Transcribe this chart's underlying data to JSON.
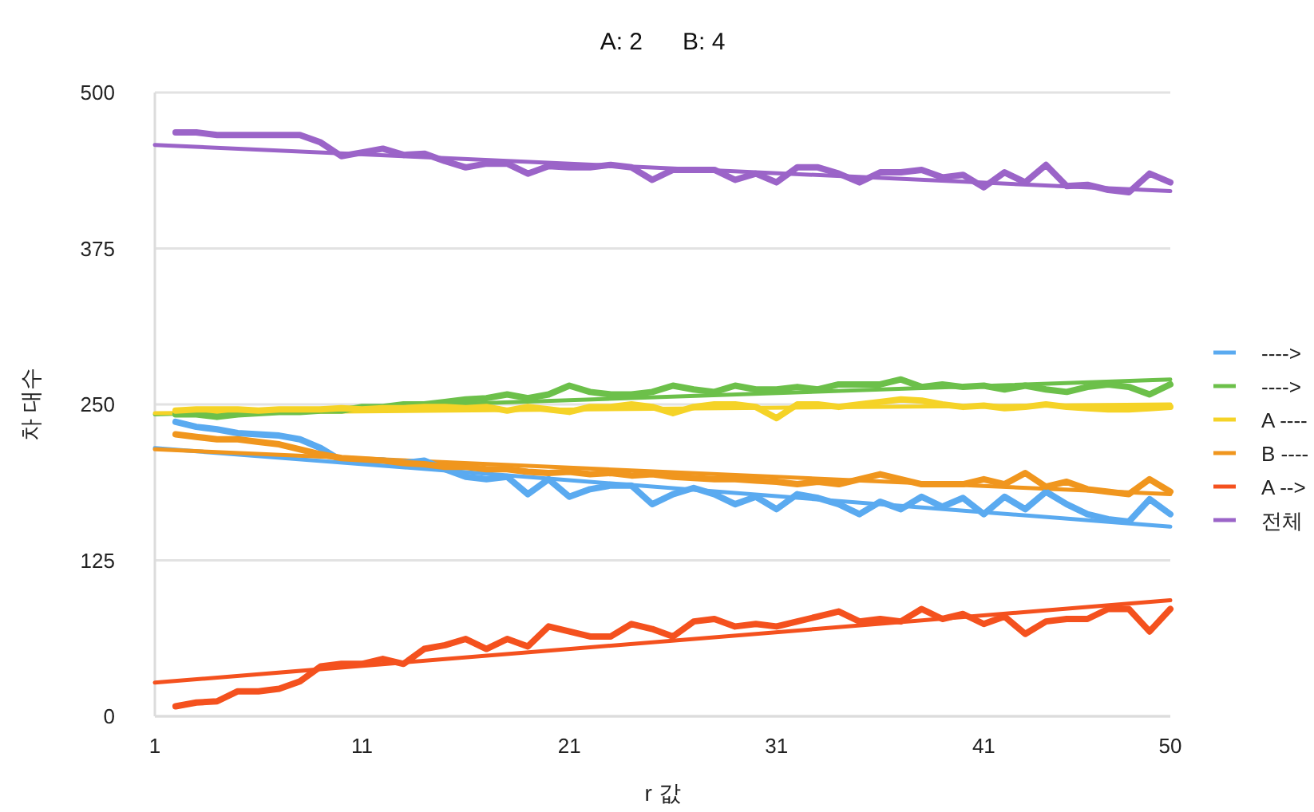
{
  "chart_data": {
    "type": "line",
    "title": "A: 2      B: 4",
    "xlabel": "r 값",
    "ylabel": "차 대수",
    "xlim": [
      1,
      50
    ],
    "xticks": [
      1,
      11,
      21,
      31,
      41,
      50
    ],
    "ylim": [
      0,
      500
    ],
    "yticks": [
      0,
      125,
      250,
      375,
      500
    ],
    "grid": "y",
    "legend": "right",
    "series": [
      {
        "name": "---->",
        "color": "#5aaaf0",
        "x": [
          2,
          3,
          4,
          5,
          6,
          7,
          8,
          9,
          10,
          11,
          12,
          13,
          14,
          15,
          16,
          17,
          18,
          19,
          20,
          21,
          22,
          23,
          24,
          25,
          26,
          27,
          28,
          29,
          30,
          31,
          32,
          33,
          34,
          35,
          36,
          37,
          38,
          39,
          40,
          41,
          42,
          43,
          44,
          45,
          46,
          47,
          48,
          49,
          50
        ],
        "values": [
          236,
          232,
          230,
          227,
          226,
          225,
          222,
          215,
          205,
          205,
          205,
          203,
          205,
          198,
          192,
          190,
          192,
          178,
          190,
          176,
          182,
          185,
          185,
          170,
          178,
          183,
          178,
          170,
          176,
          166,
          178,
          175,
          170,
          162,
          172,
          166,
          176,
          168,
          175,
          162,
          176,
          166,
          180,
          170,
          162,
          158,
          156,
          174,
          162
        ]
      },
      {
        "name": "---->",
        "color": "#6cc04a",
        "x": [
          2,
          3,
          4,
          5,
          6,
          7,
          8,
          9,
          10,
          11,
          12,
          13,
          14,
          15,
          16,
          17,
          18,
          19,
          20,
          21,
          22,
          23,
          24,
          25,
          26,
          27,
          28,
          29,
          30,
          31,
          32,
          33,
          34,
          35,
          36,
          37,
          38,
          39,
          40,
          41,
          42,
          43,
          44,
          45,
          46,
          47,
          48,
          49,
          50
        ],
        "values": [
          242,
          242,
          240,
          242,
          243,
          244,
          244,
          245,
          245,
          248,
          248,
          250,
          250,
          252,
          254,
          255,
          258,
          255,
          258,
          265,
          260,
          258,
          258,
          260,
          265,
          262,
          260,
          265,
          262,
          262,
          264,
          262,
          266,
          266,
          266,
          270,
          264,
          266,
          264,
          265,
          262,
          265,
          262,
          260,
          264,
          266,
          264,
          258,
          266
        ]
      },
      {
        "name": "A ----",
        "color": "#f5d327",
        "x": [
          2,
          3,
          4,
          5,
          6,
          7,
          8,
          9,
          10,
          11,
          12,
          13,
          14,
          15,
          16,
          17,
          18,
          19,
          20,
          21,
          22,
          23,
          24,
          25,
          26,
          27,
          28,
          29,
          30,
          31,
          32,
          33,
          34,
          35,
          36,
          37,
          38,
          39,
          40,
          41,
          42,
          43,
          44,
          45,
          46,
          47,
          48,
          49,
          50
        ],
        "values": [
          245,
          246,
          246,
          246,
          245,
          246,
          246,
          246,
          247,
          246,
          247,
          247,
          248,
          248,
          247,
          248,
          245,
          248,
          246,
          244,
          248,
          248,
          250,
          248,
          243,
          248,
          250,
          250,
          248,
          239,
          250,
          250,
          248,
          250,
          252,
          254,
          253,
          250,
          248,
          249,
          247,
          248,
          250,
          248,
          247,
          246,
          246,
          247,
          248
        ]
      },
      {
        "name": "B ----",
        "color": "#f0961e",
        "x": [
          2,
          3,
          4,
          5,
          6,
          7,
          8,
          9,
          10,
          11,
          12,
          13,
          14,
          15,
          16,
          17,
          18,
          19,
          20,
          21,
          22,
          23,
          24,
          25,
          26,
          27,
          28,
          29,
          30,
          31,
          32,
          33,
          34,
          35,
          36,
          37,
          38,
          39,
          40,
          41,
          42,
          43,
          44,
          45,
          46,
          47,
          48,
          49,
          50
        ],
        "values": [
          226,
          224,
          222,
          222,
          220,
          218,
          214,
          210,
          207,
          206,
          205,
          203,
          202,
          200,
          200,
          198,
          198,
          196,
          195,
          196,
          194,
          195,
          193,
          194,
          192,
          191,
          190,
          190,
          189,
          188,
          186,
          188,
          186,
          190,
          194,
          190,
          186,
          186,
          186,
          190,
          186,
          195,
          184,
          188,
          182,
          180,
          178,
          190,
          180
        ]
      },
      {
        "name": "A -->",
        "color": "#f4511e",
        "x": [
          2,
          3,
          4,
          5,
          6,
          7,
          8,
          9,
          10,
          11,
          12,
          13,
          14,
          15,
          16,
          17,
          18,
          19,
          20,
          21,
          22,
          23,
          24,
          25,
          26,
          27,
          28,
          29,
          30,
          31,
          32,
          33,
          34,
          35,
          36,
          37,
          38,
          39,
          40,
          41,
          42,
          43,
          44,
          45,
          46,
          47,
          48,
          49,
          50
        ],
        "values": [
          8,
          11,
          12,
          20,
          20,
          22,
          28,
          40,
          42,
          42,
          46,
          42,
          54,
          57,
          62,
          54,
          62,
          56,
          72,
          68,
          64,
          64,
          74,
          70,
          64,
          76,
          78,
          72,
          74,
          72,
          76,
          80,
          84,
          76,
          78,
          76,
          86,
          78,
          82,
          74,
          80,
          66,
          76,
          78,
          78,
          86,
          86,
          68,
          86
        ]
      },
      {
        "name": "전체",
        "color": "#9b64c8",
        "x": [
          2,
          3,
          4,
          5,
          6,
          7,
          8,
          9,
          10,
          11,
          12,
          13,
          14,
          15,
          16,
          17,
          18,
          19,
          20,
          21,
          22,
          23,
          24,
          25,
          26,
          27,
          28,
          29,
          30,
          31,
          32,
          33,
          34,
          35,
          36,
          37,
          38,
          39,
          40,
          41,
          42,
          43,
          44,
          45,
          46,
          47,
          48,
          49,
          50
        ],
        "values": [
          468,
          468,
          466,
          466,
          466,
          466,
          466,
          460,
          449,
          452,
          455,
          450,
          451,
          445,
          440,
          443,
          443,
          435,
          441,
          440,
          440,
          442,
          440,
          430,
          438,
          438,
          438,
          430,
          435,
          428,
          440,
          440,
          435,
          428,
          436,
          436,
          438,
          432,
          434,
          424,
          436,
          428,
          442,
          425,
          426,
          422,
          420,
          435,
          428
        ]
      },
      {
        "color": "#5aaaf0",
        "x": [
          1,
          50
        ],
        "values": [
          215,
          152
        ]
      },
      {
        "color": "#6cc04a",
        "x": [
          1,
          50
        ],
        "values": [
          242,
          270
        ]
      },
      {
        "color": "#f5d327",
        "x": [
          1,
          50
        ],
        "values": [
          243,
          250
        ]
      },
      {
        "color": "#f0961e",
        "x": [
          1,
          50
        ],
        "values": [
          214,
          178
        ]
      },
      {
        "color": "#f4511e",
        "x": [
          1,
          50
        ],
        "values": [
          27,
          93
        ]
      },
      {
        "color": "#9b64c8",
        "x": [
          1,
          50
        ],
        "values": [
          458,
          421
        ]
      }
    ]
  }
}
